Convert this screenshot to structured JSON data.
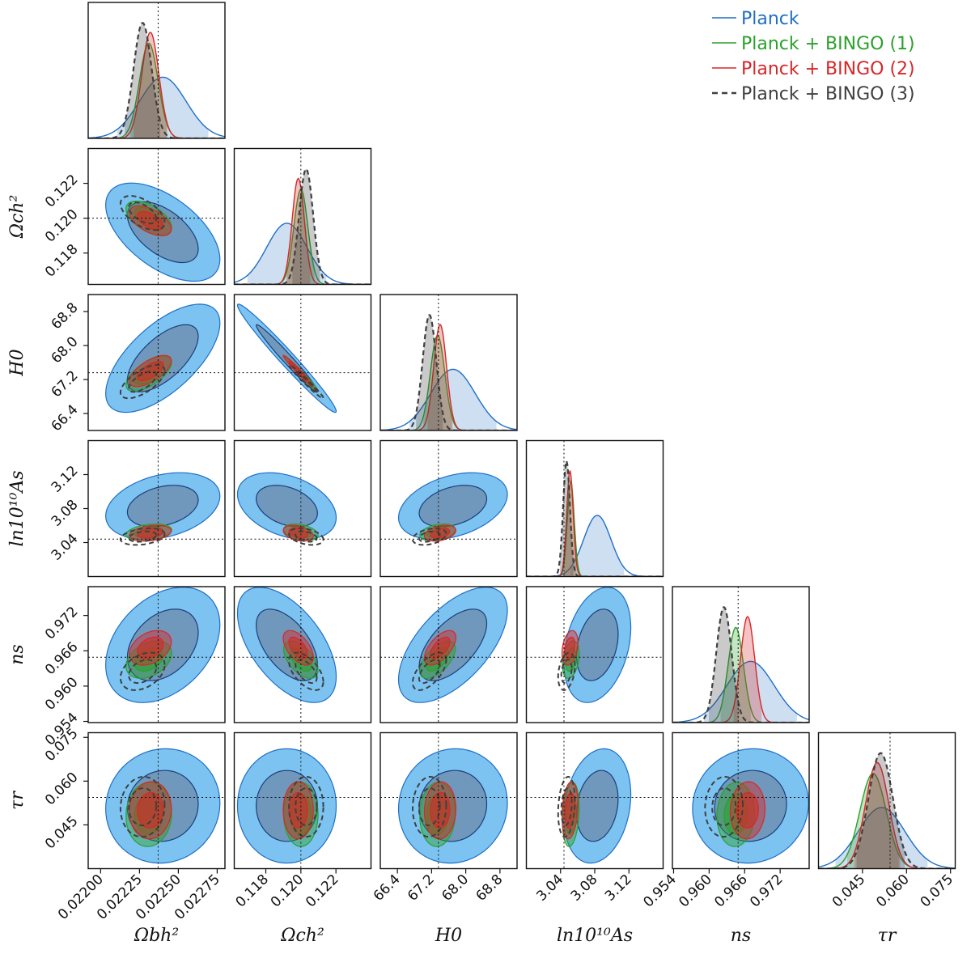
{
  "chart_data": {
    "type": "corner",
    "title": "",
    "parameters": [
      {
        "key": "omega_b",
        "label": "Ωbh²",
        "range": [
          0.02192,
          0.0228
        ],
        "ticks": [
          "0.02200",
          "0.02225",
          "0.02250",
          "0.02275"
        ],
        "tick_values": [
          0.022,
          0.02225,
          0.0225,
          0.02275
        ],
        "fiducial": 0.02237
      },
      {
        "key": "omega_c",
        "label": "Ωch²",
        "range": [
          0.1162,
          0.124
        ],
        "ticks": [
          "0.118",
          "0.120",
          "0.122"
        ],
        "tick_values": [
          0.118,
          0.12,
          0.122
        ],
        "fiducial": 0.12
      },
      {
        "key": "H0",
        "label": "H0",
        "range": [
          66.0,
          69.2
        ],
        "ticks": [
          "66.4",
          "67.2",
          "68.0",
          "68.8"
        ],
        "tick_values": [
          66.4,
          67.2,
          68.0,
          68.8
        ],
        "fiducial": 67.36
      },
      {
        "key": "lnAs",
        "label": "ln10¹⁰As",
        "range": [
          3.0,
          3.16
        ],
        "ticks": [
          "3.04",
          "3.08",
          "3.12"
        ],
        "tick_values": [
          3.04,
          3.08,
          3.12
        ],
        "fiducial": 3.044
      },
      {
        "key": "ns",
        "label": "ns",
        "range": [
          0.9538,
          0.9769
        ],
        "ticks": [
          "0.954",
          "0.960",
          "0.966",
          "0.972"
        ],
        "tick_values": [
          0.954,
          0.96,
          0.966,
          0.972
        ],
        "fiducial": 0.9649
      },
      {
        "key": "tau",
        "label": "τr",
        "range": [
          0.03,
          0.0766
        ],
        "ticks": [
          "0.045",
          "0.060",
          "0.075"
        ],
        "tick_values": [
          0.045,
          0.06,
          0.075
        ],
        "fiducial": 0.0544
      }
    ],
    "series": [
      {
        "name": "Planck",
        "color": "#1f6fc5",
        "linestyle": "solid",
        "mean": [
          0.0224,
          0.1192,
          67.7,
          3.083,
          0.967,
          0.0515
        ],
        "sigma": [
          0.00015,
          0.00115,
          0.52,
          0.016,
          0.004,
          0.008
        ],
        "peak": 0.45
      },
      {
        "name": "Planck + BINGO (1)",
        "color": "#2ca02c",
        "linestyle": "solid",
        "mean": [
          0.02231,
          0.12,
          67.34,
          3.052,
          0.9645,
          0.0486
        ],
        "sigma": [
          6e-05,
          0.0004,
          0.17,
          0.004,
          0.0013,
          0.0045
        ],
        "peak": 0.7
      },
      {
        "name": "Planck + BINGO (2)",
        "color": "#d62728",
        "linestyle": "solid",
        "mean": [
          0.02232,
          0.11985,
          67.4,
          3.051,
          0.9665,
          0.05
        ],
        "sigma": [
          5.5e-05,
          0.00035,
          0.15,
          0.0038,
          0.0012,
          0.004
        ],
        "peak": 0.78
      },
      {
        "name": "Planck + BINGO (3)",
        "color": "#404040",
        "linestyle": "dashed",
        "mean": [
          0.02227,
          0.1203,
          67.15,
          3.047,
          0.9625,
          0.0512
        ],
        "sigma": [
          5.8e-05,
          0.0004,
          0.16,
          0.004,
          0.0013,
          0.0042
        ],
        "peak": 0.85
      }
    ],
    "correlations": [
      [
        1,
        -0.55,
        0.65,
        0.3,
        0.35,
        0.05
      ],
      [
        -0.55,
        1,
        -0.98,
        -0.35,
        -0.55,
        0.0
      ],
      [
        0.65,
        -0.98,
        1,
        0.35,
        0.6,
        0.05
      ],
      [
        0.3,
        -0.35,
        0.35,
        1,
        0.3,
        0.2
      ],
      [
        0.35,
        -0.55,
        0.6,
        0.3,
        1,
        0.05
      ],
      [
        0.05,
        0.0,
        0.05,
        0.2,
        0.05,
        1
      ]
    ],
    "legend_position": "top-right",
    "xlabel": "",
    "ylabel": ""
  }
}
